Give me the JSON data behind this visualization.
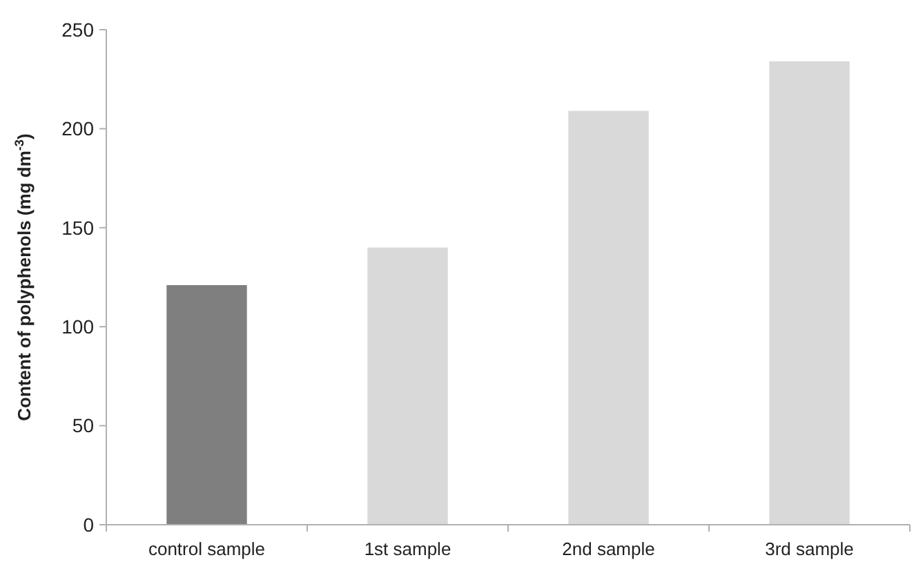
{
  "chart_data": {
    "type": "bar",
    "ylabel": "Content of polyphenols (mg dm$^{-3}$)",
    "categories": [
      "control sample",
      "1st sample",
      "2nd sample",
      "3rd sample"
    ],
    "values": [
      121,
      140,
      209,
      234
    ],
    "colors": [
      "#7f7f7f",
      "#d9d9d9",
      "#d9d9d9",
      "#d9d9d9"
    ],
    "ylim": [
      0,
      250
    ],
    "yticks": [
      0,
      50,
      100,
      150,
      200,
      250
    ],
    "grid": false
  }
}
